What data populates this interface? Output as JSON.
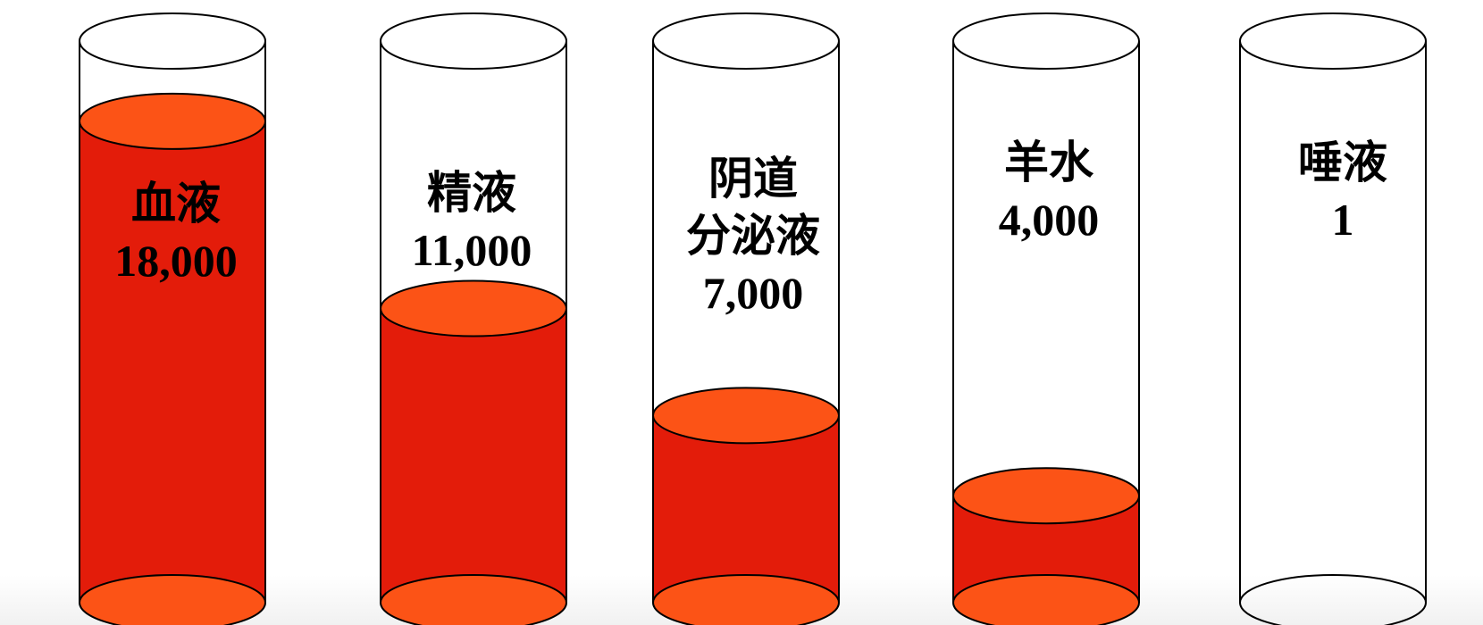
{
  "chart_data": {
    "type": "bar",
    "categories": [
      "血液",
      "精液",
      "阴道\n分泌液",
      "羊水",
      "唾液"
    ],
    "values": [
      18000,
      11000,
      7000,
      4000,
      1
    ],
    "value_labels": [
      "18,000",
      "11,000",
      "7,000",
      "4,000",
      "1"
    ],
    "title": "",
    "xlabel": "",
    "ylabel": "",
    "ylim": [
      0,
      21000
    ],
    "grid": false,
    "legend": "none"
  },
  "style": {
    "fill_color": "#e31c0a",
    "top_color": "#fc5316",
    "outline_color": "#000000",
    "background_color": "#ffffff"
  }
}
